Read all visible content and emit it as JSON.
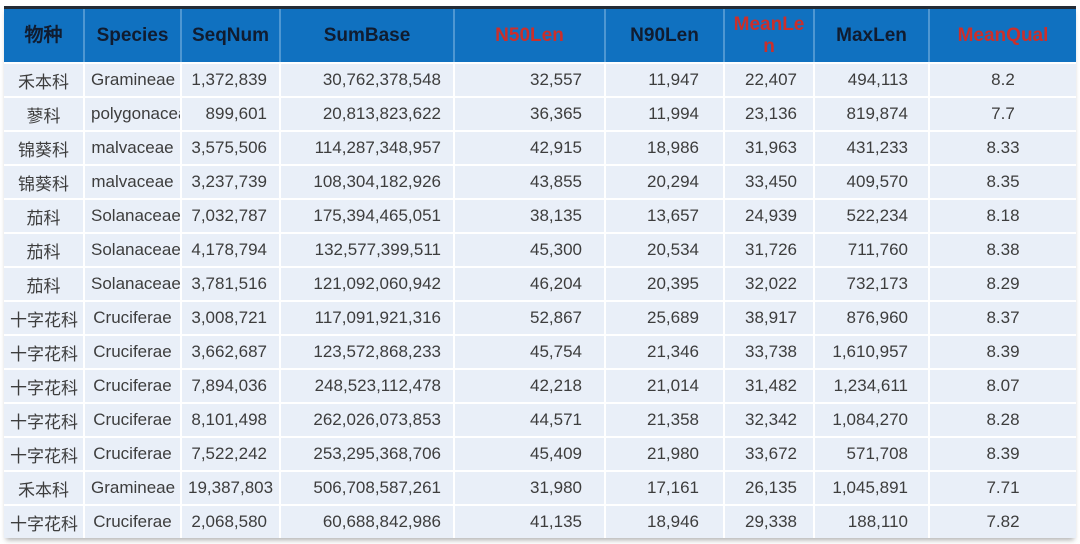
{
  "chart_data": {
    "type": "table",
    "title": "",
    "header": [
      {
        "label": "物种",
        "display": "物种",
        "color": "dark"
      },
      {
        "label": "Species",
        "display": "Species",
        "color": "dark"
      },
      {
        "label": "SeqNum",
        "display": "SeqNum",
        "color": "dark"
      },
      {
        "label": "SumBase",
        "display": "SumBase",
        "color": "dark"
      },
      {
        "label": "N50Len",
        "display": "N50Len",
        "color": "red"
      },
      {
        "label": "N90Len",
        "display": "N90Len",
        "color": "dark"
      },
      {
        "label": "MeanLen",
        "display": "MeanLe\nn",
        "color": "red"
      },
      {
        "label": "MaxLen",
        "display": "MaxLen",
        "color": "dark"
      },
      {
        "label": "MeanQual",
        "display": "MeanQual",
        "color": "red"
      }
    ],
    "rows": [
      [
        "禾本科",
        "Gramineae",
        "1,372,839",
        "30,762,378,548",
        "32,557",
        "11,947",
        "22,407",
        "494,113",
        "8.2"
      ],
      [
        "蓼科",
        "polygonaceae",
        "899,601",
        "20,813,823,622",
        "36,365",
        "11,994",
        "23,136",
        "819,874",
        "7.7"
      ],
      [
        "锦葵科",
        "malvaceae",
        "3,575,506",
        "114,287,348,957",
        "42,915",
        "18,986",
        "31,963",
        "431,233",
        "8.33"
      ],
      [
        "锦葵科",
        "malvaceae",
        "3,237,739",
        "108,304,182,926",
        "43,855",
        "20,294",
        "33,450",
        "409,570",
        "8.35"
      ],
      [
        "茄科",
        "Solanaceae",
        "7,032,787",
        "175,394,465,051",
        "38,135",
        "13,657",
        "24,939",
        "522,234",
        "8.18"
      ],
      [
        "茄科",
        "Solanaceae",
        "4,178,794",
        "132,577,399,511",
        "45,300",
        "20,534",
        "31,726",
        "711,760",
        "8.38"
      ],
      [
        "茄科",
        "Solanaceae",
        "3,781,516",
        "121,092,060,942",
        "46,204",
        "20,395",
        "32,022",
        "732,173",
        "8.29"
      ],
      [
        "十字花科",
        "Cruciferae",
        "3,008,721",
        "117,091,921,316",
        "52,867",
        "25,689",
        "38,917",
        "876,960",
        "8.37"
      ],
      [
        "十字花科",
        "Cruciferae",
        "3,662,687",
        "123,572,868,233",
        "45,754",
        "21,346",
        "33,738",
        "1,610,957",
        "8.39"
      ],
      [
        "十字花科",
        "Cruciferae",
        "7,894,036",
        "248,523,112,478",
        "42,218",
        "21,014",
        "31,482",
        "1,234,611",
        "8.07"
      ],
      [
        "十字花科",
        "Cruciferae",
        "8,101,498",
        "262,026,073,853",
        "44,571",
        "21,358",
        "32,342",
        "1,084,270",
        "8.28"
      ],
      [
        "十字花科",
        "Cruciferae",
        "7,522,242",
        "253,295,368,706",
        "45,409",
        "21,980",
        "33,672",
        "571,708",
        "8.39"
      ],
      [
        "禾本科",
        "Gramineae",
        "19,387,803",
        "506,708,587,261",
        "31,980",
        "17,161",
        "26,135",
        "1,045,891",
        "7.71"
      ],
      [
        "十字花科",
        "Cruciferae",
        "2,068,580",
        "60,688,842,986",
        "41,135",
        "18,946",
        "29,338",
        "188,110",
        "7.82"
      ]
    ]
  },
  "colors": {
    "header_bg": "#1071c0",
    "header_text": "#101c30",
    "header_accent_text": "#cb2f2b",
    "header_divider": "#4e97d2",
    "top_border": "#232b35",
    "row_bg": "#e9eff8",
    "row_divider": "#ffffff",
    "cell_text": "#3d3d3d"
  }
}
